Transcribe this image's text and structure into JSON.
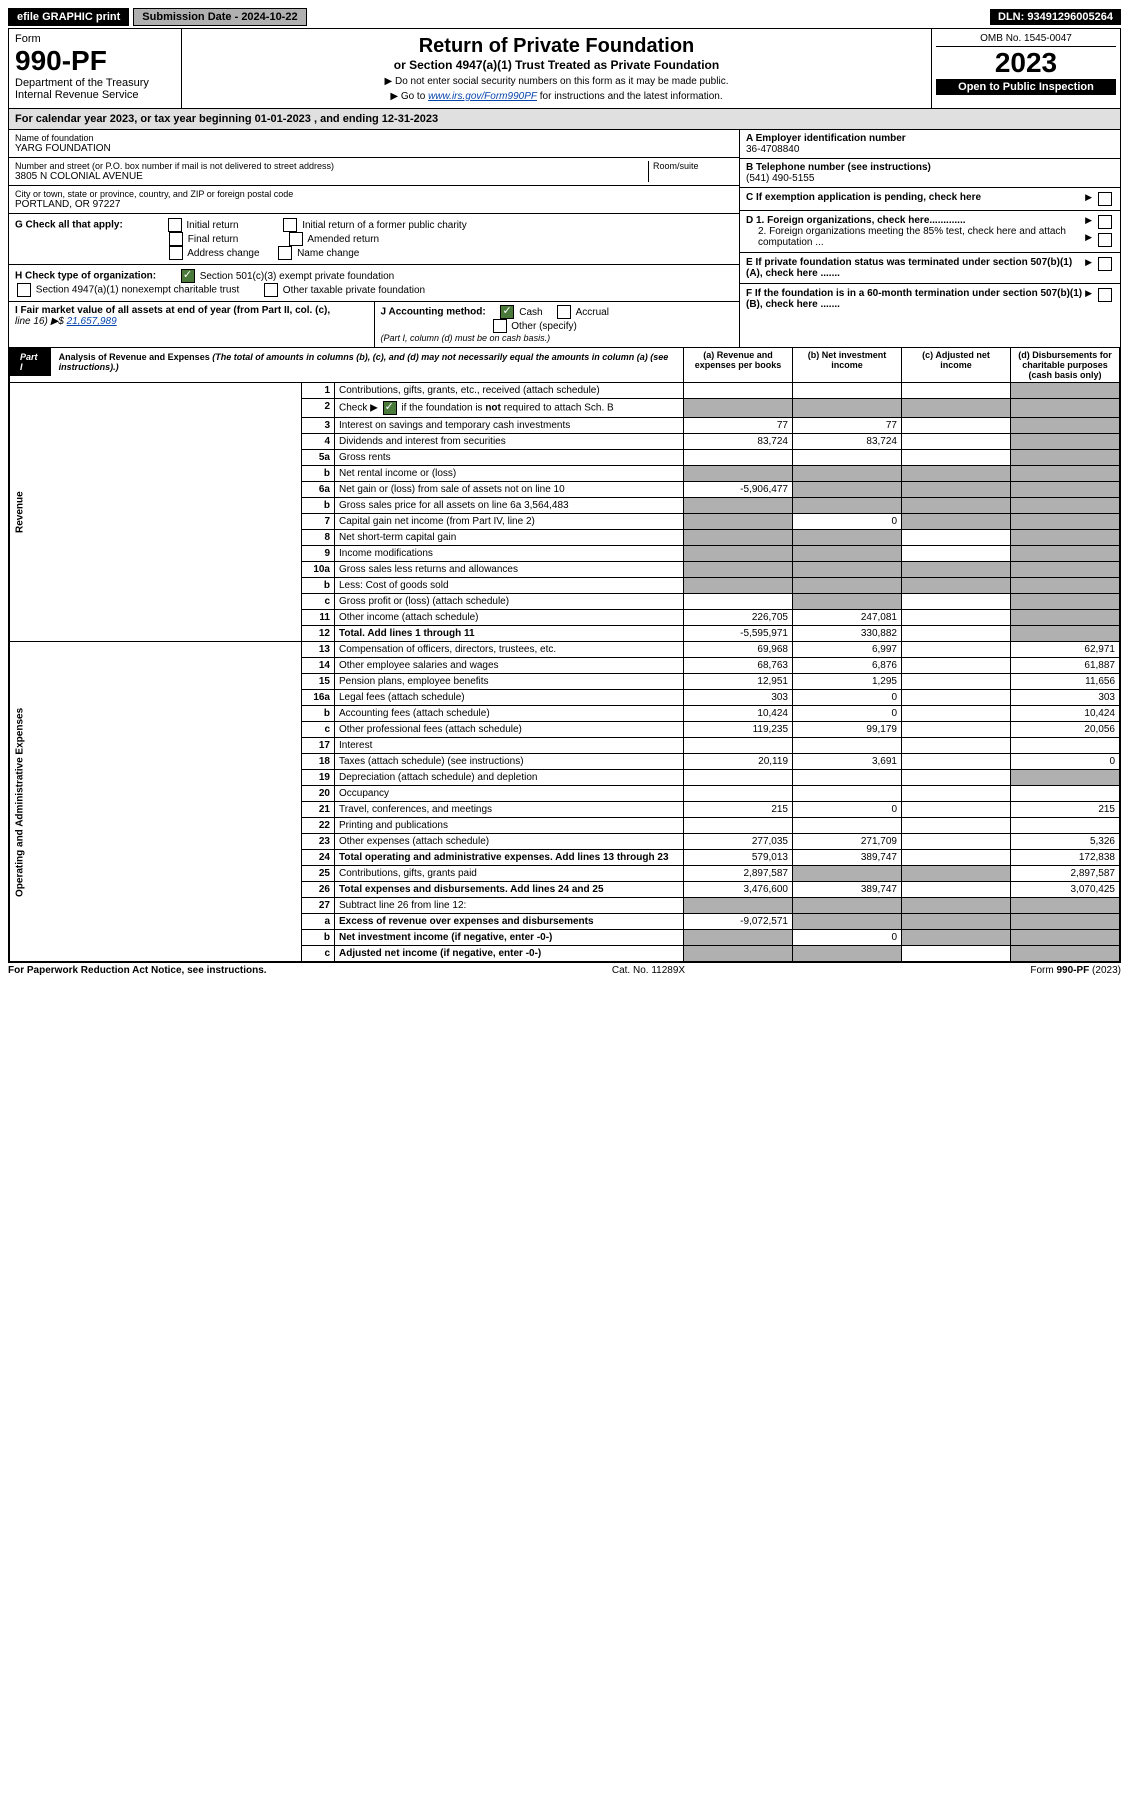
{
  "header": {
    "efile": "efile GRAPHIC print",
    "submission": "Submission Date - 2024-10-22",
    "dln": "DLN: 93491296005264"
  },
  "top": {
    "form_word": "Form",
    "form_num": "990-PF",
    "dept": "Department of the Treasury",
    "irs": "Internal Revenue Service",
    "title": "Return of Private Foundation",
    "subtitle": "or Section 4947(a)(1) Trust Treated as Private Foundation",
    "instr1": "▶ Do not enter social security numbers on this form as it may be made public.",
    "instr2_pre": "▶ Go to ",
    "instr2_link": "www.irs.gov/Form990PF",
    "instr2_post": " for instructions and the latest information.",
    "omb": "OMB No. 1545-0047",
    "year": "2023",
    "open": "Open to Public Inspection"
  },
  "calyear": "For calendar year 2023, or tax year beginning 01-01-2023                            , and ending 12-31-2023",
  "meta": {
    "name_label": "Name of foundation",
    "name": "YARG FOUNDATION",
    "addr_label": "Number and street (or P.O. box number if mail is not delivered to street address)",
    "addr": "3805 N COLONIAL AVENUE",
    "room_label": "Room/suite",
    "city_label": "City or town, state or province, country, and ZIP or foreign postal code",
    "city": "PORTLAND, OR  97227",
    "a_label": "A Employer identification number",
    "ein": "36-4708840",
    "b_label": "B Telephone number (see instructions)",
    "phone": "(541) 490-5155",
    "c_label": "C If exemption application is pending, check here",
    "d1": "D 1. Foreign organizations, check here.............",
    "d2": "2. Foreign organizations meeting the 85% test, check here and attach computation ...",
    "e_label": "E  If private foundation status was terminated under section 507(b)(1)(A), check here .......",
    "f_label": "F  If the foundation is in a 60-month termination under section 507(b)(1)(B), check here ......."
  },
  "g": {
    "label": "G Check all that apply:",
    "initial": "Initial return",
    "final": "Final return",
    "addr_change": "Address change",
    "initial_former": "Initial return of a former public charity",
    "amended": "Amended return",
    "name_change": "Name change"
  },
  "h": {
    "label": "H Check type of organization:",
    "opt1": "Section 501(c)(3) exempt private foundation",
    "opt2": "Section 4947(a)(1) nonexempt charitable trust",
    "opt3": "Other taxable private foundation"
  },
  "i": {
    "label": "I Fair market value of all assets at end of year (from Part II, col. (c),",
    "line16": "line 16) ▶$ ",
    "amount": "21,657,989"
  },
  "j": {
    "label": "J Accounting method:",
    "cash": "Cash",
    "accrual": "Accrual",
    "other": "Other (specify)",
    "note": "(Part I, column (d) must be on cash basis.)"
  },
  "part1": {
    "tag": "Part I",
    "title": "Analysis of Revenue and Expenses",
    "desc": "(The total of amounts in columns (b), (c), and (d) may not necessarily equal the amounts in column (a) (see instructions).)",
    "col_a": "(a)    Revenue and expenses per books",
    "col_b": "(b)   Net investment income",
    "col_c": "(c)  Adjusted net income",
    "col_d": "(d)  Disbursements for charitable purposes (cash basis only)"
  },
  "revenue_label": "Revenue",
  "expenses_label": "Operating and Administrative Expenses",
  "rows": [
    {
      "n": "1",
      "label": "Contributions, gifts, grants, etc., received (attach schedule)",
      "a": "",
      "b": "",
      "c": "",
      "d": "",
      "grey_d": true
    },
    {
      "n": "2",
      "label": "Check ▶ ☑ if the foundation is not required to attach Sch. B",
      "a": "",
      "b": "",
      "c": "",
      "d": "",
      "grey_a": true,
      "grey_b": true,
      "grey_c": true,
      "grey_d": true,
      "has_check": true
    },
    {
      "n": "3",
      "label": "Interest on savings and temporary cash investments",
      "a": "77",
      "b": "77",
      "c": "",
      "d": "",
      "grey_d": true
    },
    {
      "n": "4",
      "label": "Dividends and interest from securities",
      "a": "83,724",
      "b": "83,724",
      "c": "",
      "d": "",
      "grey_d": true
    },
    {
      "n": "5a",
      "label": "Gross rents",
      "a": "",
      "b": "",
      "c": "",
      "d": "",
      "grey_d": true
    },
    {
      "n": "b",
      "label": "Net rental income or (loss)",
      "a": "",
      "b": "",
      "c": "",
      "d": "",
      "grey_a": true,
      "grey_b": true,
      "grey_c": true,
      "grey_d": true
    },
    {
      "n": "6a",
      "label": "Net gain or (loss) from sale of assets not on line 10",
      "a": "-5,906,477",
      "b": "",
      "c": "",
      "d": "",
      "grey_b": true,
      "grey_c": true,
      "grey_d": true
    },
    {
      "n": "b",
      "label": "Gross sales price for all assets on line 6a             3,564,483",
      "a": "",
      "b": "",
      "c": "",
      "d": "",
      "grey_a": true,
      "grey_b": true,
      "grey_c": true,
      "grey_d": true
    },
    {
      "n": "7",
      "label": "Capital gain net income (from Part IV, line 2)",
      "a": "",
      "b": "0",
      "c": "",
      "d": "",
      "grey_a": true,
      "grey_c": true,
      "grey_d": true
    },
    {
      "n": "8",
      "label": "Net short-term capital gain",
      "a": "",
      "b": "",
      "c": "",
      "d": "",
      "grey_a": true,
      "grey_b": true,
      "grey_d": true
    },
    {
      "n": "9",
      "label": "Income modifications",
      "a": "",
      "b": "",
      "c": "",
      "d": "",
      "grey_a": true,
      "grey_b": true,
      "grey_d": true
    },
    {
      "n": "10a",
      "label": "Gross sales less returns and allowances",
      "a": "",
      "b": "",
      "c": "",
      "d": "",
      "grey_a": true,
      "grey_b": true,
      "grey_c": true,
      "grey_d": true
    },
    {
      "n": "b",
      "label": "Less: Cost of goods sold",
      "a": "",
      "b": "",
      "c": "",
      "d": "",
      "grey_a": true,
      "grey_b": true,
      "grey_c": true,
      "grey_d": true
    },
    {
      "n": "c",
      "label": "Gross profit or (loss) (attach schedule)",
      "a": "",
      "b": "",
      "c": "",
      "d": "",
      "grey_b": true,
      "grey_d": true
    },
    {
      "n": "11",
      "label": "Other income (attach schedule)",
      "a": "226,705",
      "b": "247,081",
      "c": "",
      "d": "",
      "grey_d": true
    },
    {
      "n": "12",
      "label": "Total. Add lines 1 through 11",
      "a": "-5,595,971",
      "b": "330,882",
      "c": "",
      "d": "",
      "grey_d": true,
      "bold": true
    },
    {
      "n": "13",
      "label": "Compensation of officers, directors, trustees, etc.",
      "a": "69,968",
      "b": "6,997",
      "c": "",
      "d": "62,971"
    },
    {
      "n": "14",
      "label": "Other employee salaries and wages",
      "a": "68,763",
      "b": "6,876",
      "c": "",
      "d": "61,887"
    },
    {
      "n": "15",
      "label": "Pension plans, employee benefits",
      "a": "12,951",
      "b": "1,295",
      "c": "",
      "d": "11,656"
    },
    {
      "n": "16a",
      "label": "Legal fees (attach schedule)",
      "a": "303",
      "b": "0",
      "c": "",
      "d": "303"
    },
    {
      "n": "b",
      "label": "Accounting fees (attach schedule)",
      "a": "10,424",
      "b": "0",
      "c": "",
      "d": "10,424"
    },
    {
      "n": "c",
      "label": "Other professional fees (attach schedule)",
      "a": "119,235",
      "b": "99,179",
      "c": "",
      "d": "20,056"
    },
    {
      "n": "17",
      "label": "Interest",
      "a": "",
      "b": "",
      "c": "",
      "d": ""
    },
    {
      "n": "18",
      "label": "Taxes (attach schedule) (see instructions)",
      "a": "20,119",
      "b": "3,691",
      "c": "",
      "d": "0"
    },
    {
      "n": "19",
      "label": "Depreciation (attach schedule) and depletion",
      "a": "",
      "b": "",
      "c": "",
      "d": "",
      "grey_d": true
    },
    {
      "n": "20",
      "label": "Occupancy",
      "a": "",
      "b": "",
      "c": "",
      "d": ""
    },
    {
      "n": "21",
      "label": "Travel, conferences, and meetings",
      "a": "215",
      "b": "0",
      "c": "",
      "d": "215"
    },
    {
      "n": "22",
      "label": "Printing and publications",
      "a": "",
      "b": "",
      "c": "",
      "d": ""
    },
    {
      "n": "23",
      "label": "Other expenses (attach schedule)",
      "a": "277,035",
      "b": "271,709",
      "c": "",
      "d": "5,326"
    },
    {
      "n": "24",
      "label": "Total operating and administrative expenses. Add lines 13 through 23",
      "a": "579,013",
      "b": "389,747",
      "c": "",
      "d": "172,838",
      "bold": true
    },
    {
      "n": "25",
      "label": "Contributions, gifts, grants paid",
      "a": "2,897,587",
      "b": "",
      "c": "",
      "d": "2,897,587",
      "grey_b": true,
      "grey_c": true
    },
    {
      "n": "26",
      "label": "Total expenses and disbursements. Add lines 24 and 25",
      "a": "3,476,600",
      "b": "389,747",
      "c": "",
      "d": "3,070,425",
      "bold": true
    },
    {
      "n": "27",
      "label": "Subtract line 26 from line 12:",
      "a": "",
      "b": "",
      "c": "",
      "d": "",
      "grey_a": true,
      "grey_b": true,
      "grey_c": true,
      "grey_d": true
    },
    {
      "n": "a",
      "label": "Excess of revenue over expenses and disbursements",
      "a": "-9,072,571",
      "b": "",
      "c": "",
      "d": "",
      "grey_b": true,
      "grey_c": true,
      "grey_d": true,
      "bold": true
    },
    {
      "n": "b",
      "label": "Net investment income (if negative, enter -0-)",
      "a": "",
      "b": "0",
      "c": "",
      "d": "",
      "grey_a": true,
      "grey_c": true,
      "grey_d": true,
      "bold": true
    },
    {
      "n": "c",
      "label": "Adjusted net income (if negative, enter -0-)",
      "a": "",
      "b": "",
      "c": "",
      "d": "",
      "grey_a": true,
      "grey_b": true,
      "grey_d": true,
      "bold": true
    }
  ],
  "footer": {
    "left": "For Paperwork Reduction Act Notice, see instructions.",
    "mid": "Cat. No. 11289X",
    "right": "Form 990-PF (2023)"
  }
}
